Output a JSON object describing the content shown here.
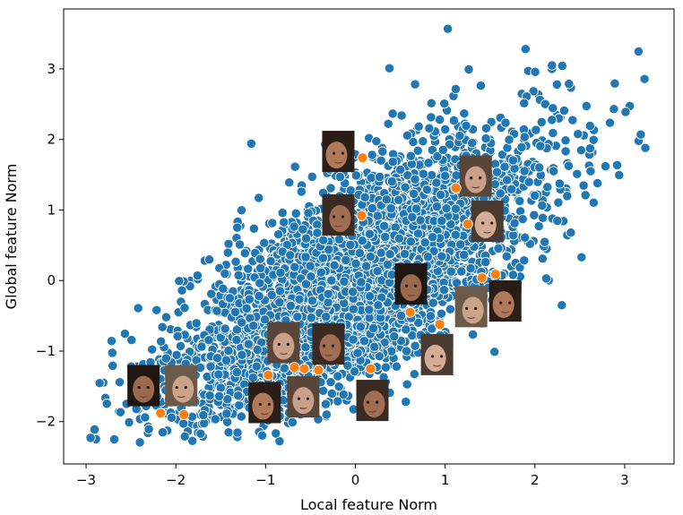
{
  "chart_data": {
    "type": "scatter",
    "xlabel": "Local feature Norm",
    "ylabel": "Global feature Norm",
    "xlim": [
      -3.25,
      3.55
    ],
    "ylim": [
      -2.6,
      3.85
    ],
    "x_ticks": [
      -3,
      -2,
      -1,
      0,
      1,
      2,
      3
    ],
    "y_ticks": [
      -2,
      -1,
      0,
      1,
      2,
      3
    ],
    "x_tick_labels": [
      "−3",
      "−2",
      "−1",
      "0",
      "1",
      "2",
      "3"
    ],
    "y_tick_labels": [
      "−2",
      "−1",
      "0",
      "1",
      "2",
      "3"
    ],
    "grid": false,
    "series": [
      {
        "color": "#1f77b4",
        "point_count": 4000,
        "approx_correlation": 0.72,
        "outliers": [
          {
            "x": 1.03,
            "y": 3.57
          },
          {
            "x": 0.38,
            "y": 3.01
          },
          {
            "x": 2.19,
            "y": 3.05
          },
          {
            "x": 3.01,
            "y": 2.39
          },
          {
            "x": 2.88,
            "y": 2.43
          },
          {
            "x": 3.18,
            "y": 2.07
          },
          {
            "x": 3.23,
            "y": 1.88
          },
          {
            "x": -2.89,
            "y": -2.25
          },
          {
            "x": -2.95,
            "y": -2.23
          },
          {
            "x": -1.9,
            "y": -2.21
          },
          {
            "x": -1.16,
            "y": 1.94
          },
          {
            "x": -1.98,
            "y": -0.79
          },
          {
            "x": 2.52,
            "y": 0.33
          },
          {
            "x": 2.3,
            "y": -0.35
          },
          {
            "x": 1.55,
            "y": -1.01
          },
          {
            "x": -0.33,
            "y": -1.75
          }
        ]
      },
      {
        "color": "#ff7f0e",
        "points": [
          {
            "x": 0.08,
            "y": 1.74
          },
          {
            "x": 0.07,
            "y": 0.92
          },
          {
            "x": 1.12,
            "y": 1.31
          },
          {
            "x": 1.25,
            "y": 0.8
          },
          {
            "x": 1.41,
            "y": 0.04
          },
          {
            "x": 1.56,
            "y": 0.09
          },
          {
            "x": 0.61,
            "y": -0.45
          },
          {
            "x": 0.94,
            "y": -0.62
          },
          {
            "x": -0.97,
            "y": -1.34
          },
          {
            "x": -0.68,
            "y": -1.23
          },
          {
            "x": -0.57,
            "y": -1.25
          },
          {
            "x": -0.41,
            "y": -1.27
          },
          {
            "x": 0.17,
            "y": -1.25
          },
          {
            "x": -2.17,
            "y": -1.88
          },
          {
            "x": -1.91,
            "y": -1.9
          }
        ]
      }
    ],
    "thumbnails": [
      {
        "x": -0.19,
        "y": 1.83
      },
      {
        "x": 1.34,
        "y": 1.48
      },
      {
        "x": -0.19,
        "y": 0.93
      },
      {
        "x": 1.47,
        "y": 0.84
      },
      {
        "x": 0.62,
        "y": -0.05
      },
      {
        "x": 1.29,
        "y": -0.37
      },
      {
        "x": 1.67,
        "y": -0.29
      },
      {
        "x": -0.8,
        "y": -0.88
      },
      {
        "x": -0.3,
        "y": -0.9
      },
      {
        "x": 0.91,
        "y": -1.05
      },
      {
        "x": -2.36,
        "y": -1.49
      },
      {
        "x": -1.94,
        "y": -1.49
      },
      {
        "x": -1.01,
        "y": -1.73
      },
      {
        "x": -0.58,
        "y": -1.65
      },
      {
        "x": 0.19,
        "y": -1.7
      }
    ]
  }
}
